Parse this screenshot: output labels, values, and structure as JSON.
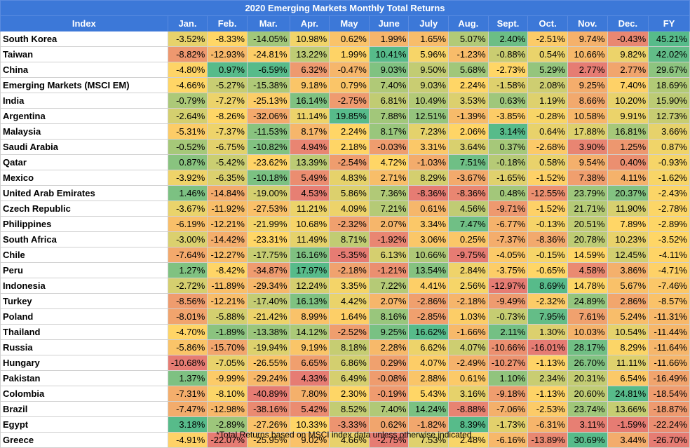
{
  "chart_data": {
    "type": "table",
    "title": "2020 Emerging Markets Monthly Total Returns",
    "columns": [
      "Index",
      "Jan.",
      "Feb.",
      "Mar.",
      "Apr.",
      "May",
      "June",
      "July",
      "Aug.",
      "Sept.",
      "Oct.",
      "Nov.",
      "Dec.",
      "FY"
    ],
    "rows": [
      {
        "name": "South Korea",
        "values": [
          "-3.52%",
          "-8.33%",
          "-14.05%",
          "10.98%",
          "0.62%",
          "1.99%",
          "1.65%",
          "5.07%",
          "2.40%",
          "-2.51%",
          "9.74%",
          "-0.43%",
          "45.21%"
        ]
      },
      {
        "name": "Taiwan",
        "values": [
          "-8.82%",
          "-12.93%",
          "-24.81%",
          "13.22%",
          "1.99%",
          "10.41%",
          "5.96%",
          "-1.23%",
          "-0.88%",
          "0.54%",
          "10.66%",
          "9.82%",
          "42.02%"
        ]
      },
      {
        "name": "China",
        "values": [
          "-4.80%",
          "0.97%",
          "-6.59%",
          "6.32%",
          "-0.47%",
          "9.03%",
          "9.50%",
          "5.68%",
          "-2.73%",
          "5.29%",
          "2.77%",
          "2.77%",
          "29.67%"
        ]
      },
      {
        "name": "Emerging Markets (MSCI EM)",
        "values": [
          "-4.66%",
          "-5.27%",
          "-15.38%",
          "9.18%",
          "0.79%",
          "7.40%",
          "9.03%",
          "2.24%",
          "-1.58%",
          "2.08%",
          "9.25%",
          "7.40%",
          "18.69%"
        ]
      },
      {
        "name": "India",
        "values": [
          "-0.79%",
          "-7.27%",
          "-25.13%",
          "16.14%",
          "-2.75%",
          "6.81%",
          "10.49%",
          "3.53%",
          "0.63%",
          "1.19%",
          "8.66%",
          "10.20%",
          "15.90%"
        ]
      },
      {
        "name": "Argentina",
        "values": [
          "-2.64%",
          "-8.26%",
          "-32.06%",
          "11.14%",
          "19.85%",
          "7.88%",
          "12.51%",
          "-1.39%",
          "-3.85%",
          "-0.28%",
          "10.58%",
          "9.91%",
          "12.73%"
        ]
      },
      {
        "name": "Malaysia",
        "values": [
          "-5.31%",
          "-7.37%",
          "-11.53%",
          "8.17%",
          "2.24%",
          "8.17%",
          "7.23%",
          "2.06%",
          "3.14%",
          "0.64%",
          "17.88%",
          "16.81%",
          "3.66%"
        ]
      },
      {
        "name": "Saudi Arabia",
        "values": [
          "-0.52%",
          "-6.75%",
          "-10.82%",
          "4.94%",
          "2.18%",
          "-0.03%",
          "3.31%",
          "3.64%",
          "0.37%",
          "-2.68%",
          "3.90%",
          "1.25%",
          "0.87%"
        ]
      },
      {
        "name": "Qatar",
        "values": [
          "0.87%",
          "-5.42%",
          "-23.62%",
          "13.39%",
          "-2.54%",
          "4.72%",
          "-1.03%",
          "7.51%",
          "-0.18%",
          "0.58%",
          "9.54%",
          "0.40%",
          "-0.93%"
        ]
      },
      {
        "name": "Mexico",
        "values": [
          "-3.92%",
          "-6.35%",
          "-10.18%",
          "5.49%",
          "4.83%",
          "2.71%",
          "8.29%",
          "-3.67%",
          "-1.65%",
          "-1.52%",
          "7.38%",
          "4.11%",
          "-1.62%"
        ]
      },
      {
        "name": "United Arab Emirates",
        "values": [
          "1.46%",
          "-14.84%",
          "-19.00%",
          "4.53%",
          "5.86%",
          "7.36%",
          "-8.36%",
          "-8.36%",
          "0.48%",
          "-12.55%",
          "23.79%",
          "20.37%",
          "-2.43%"
        ]
      },
      {
        "name": "Czech Republic",
        "values": [
          "-3.67%",
          "-11.92%",
          "-27.53%",
          "11.21%",
          "4.09%",
          "7.21%",
          "0.61%",
          "4.56%",
          "-9.71%",
          "-1.52%",
          "21.71%",
          "11.90%",
          "-2.78%"
        ]
      },
      {
        "name": "Philippines",
        "values": [
          "-6.19%",
          "-12.21%",
          "-21.99%",
          "10.68%",
          "-2.32%",
          "2.07%",
          "3.34%",
          "7.47%",
          "-6.77%",
          "-0.13%",
          "20.51%",
          "7.89%",
          "-2.89%"
        ]
      },
      {
        "name": "South Africa",
        "values": [
          "-3.00%",
          "-14.42%",
          "-23.31%",
          "11.49%",
          "8.71%",
          "-1.92%",
          "3.06%",
          "0.25%",
          "-7.37%",
          "-8.36%",
          "20.78%",
          "10.23%",
          "-3.52%"
        ]
      },
      {
        "name": "Chile",
        "values": [
          "-7.64%",
          "-12.27%",
          "-17.75%",
          "16.16%",
          "-5.35%",
          "6.13%",
          "10.66%",
          "-9.75%",
          "-4.05%",
          "-0.15%",
          "14.59%",
          "12.45%",
          "-4.11%"
        ]
      },
      {
        "name": "Peru",
        "values": [
          "1.27%",
          "-8.42%",
          "-34.87%",
          "17.97%",
          "-2.18%",
          "-1.21%",
          "13.54%",
          "2.84%",
          "-3.75%",
          "-0.65%",
          "4.58%",
          "3.86%",
          "-4.71%"
        ]
      },
      {
        "name": "Indonesia",
        "values": [
          "-2.72%",
          "-11.89%",
          "-29.34%",
          "12.24%",
          "3.35%",
          "7.22%",
          "4.41%",
          "2.56%",
          "-12.97%",
          "8.69%",
          "14.78%",
          "5.67%",
          "-7.46%"
        ]
      },
      {
        "name": "Turkey",
        "values": [
          "-8.56%",
          "-12.21%",
          "-17.40%",
          "16.13%",
          "4.42%",
          "2.07%",
          "-2.86%",
          "-2.18%",
          "-9.49%",
          "-2.32%",
          "24.89%",
          "2.86%",
          "-8.57%"
        ]
      },
      {
        "name": "Poland",
        "values": [
          "-8.01%",
          "-5.88%",
          "-21.42%",
          "8.99%",
          "1.64%",
          "8.16%",
          "-2.85%",
          "1.03%",
          "-0.73%",
          "7.95%",
          "7.61%",
          "5.24%",
          "-11.31%"
        ]
      },
      {
        "name": "Thailand",
        "values": [
          "-4.70%",
          "-1.89%",
          "-13.38%",
          "14.12%",
          "-2.52%",
          "9.25%",
          "16.62%",
          "-1.66%",
          "2.11%",
          "1.30%",
          "10.03%",
          "10.54%",
          "-11.44%"
        ]
      },
      {
        "name": "Russia",
        "values": [
          "-5.86%",
          "-15.70%",
          "-19.94%",
          "9.19%",
          "8.18%",
          "2.28%",
          "6.62%",
          "4.07%",
          "-10.66%",
          "-16.01%",
          "28.17%",
          "8.29%",
          "-11.64%"
        ]
      },
      {
        "name": "Hungary",
        "values": [
          "-10.68%",
          "-7.05%",
          "-26.55%",
          "6.65%",
          "6.86%",
          "0.29%",
          "4.07%",
          "-2.49%",
          "-10.27%",
          "-1.13%",
          "26.70%",
          "11.11%",
          "-11.66%"
        ]
      },
      {
        "name": "Pakistan",
        "values": [
          "1.37%",
          "-9.99%",
          "-29.24%",
          "4.33%",
          "6.49%",
          "-0.08%",
          "2.88%",
          "0.61%",
          "1.10%",
          "2.34%",
          "20.31%",
          "6.54%",
          "-16.49%"
        ]
      },
      {
        "name": "Colombia",
        "values": [
          "-7.31%",
          "-8.10%",
          "-40.89%",
          "7.80%",
          "2.30%",
          "-0.19%",
          "5.43%",
          "3.16%",
          "-9.18%",
          "-1.13%",
          "20.60%",
          "24.81%",
          "-18.54%"
        ]
      },
      {
        "name": "Brazil",
        "values": [
          "-7.47%",
          "-12.98%",
          "-38.16%",
          "5.42%",
          "8.52%",
          "7.40%",
          "14.24%",
          "-8.88%",
          "-7.06%",
          "-2.53%",
          "23.74%",
          "13.66%",
          "-18.87%"
        ]
      },
      {
        "name": "Egypt",
        "values": [
          "3.18%",
          "-2.89%",
          "-27.26%",
          "10.33%",
          "-3.33%",
          "0.62%",
          "-1.82%",
          "8.39%",
          "-1.73%",
          "-6.31%",
          "3.11%",
          "-1.59%",
          "-22.24%"
        ]
      },
      {
        "name": "Greece",
        "values": [
          "-4.91%",
          "-22.07%",
          "-25.95%",
          "9.02%",
          "4.66%",
          "-2.75%",
          "7.53%",
          "2.48%",
          "-6.16%",
          "-13.89%",
          "30.69%",
          "3.44%",
          "-26.70%"
        ]
      }
    ],
    "colors": {
      "low": "#e67c73",
      "mid": "#ffd666",
      "high": "#57bb8a",
      "header": "#3c78d8"
    }
  },
  "footnote": "*Total Returns based on MSCI index data unless otherwise indicated."
}
